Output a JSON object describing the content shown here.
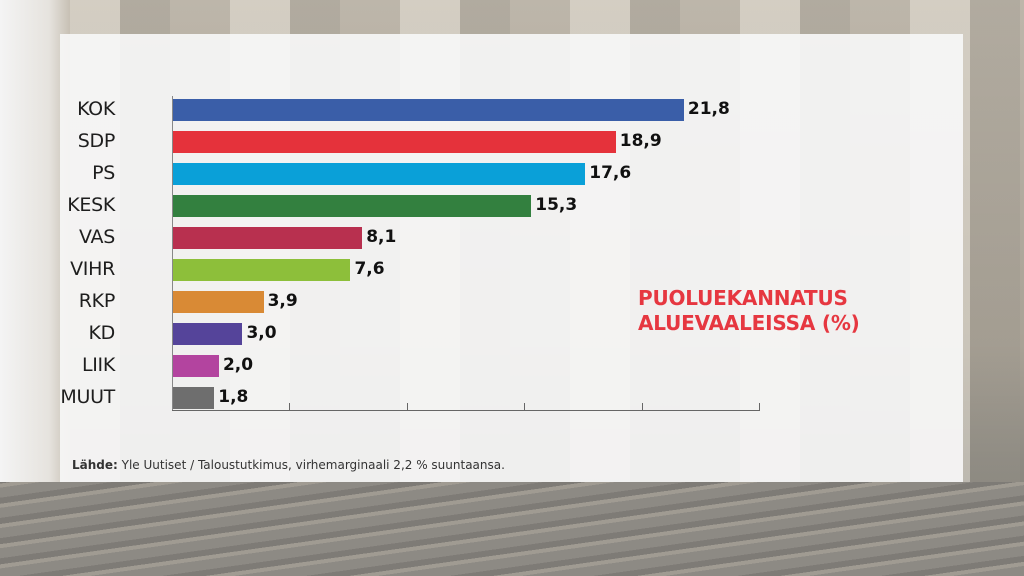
{
  "chart_data": {
    "type": "bar",
    "orientation": "horizontal",
    "title": "PUOLUEKANNATUS ALUEVAALEISSA (%)",
    "title_lines": [
      "PUOLUEKANNATUS",
      "ALUEVAALEISSA (%)"
    ],
    "categories": [
      "KOK",
      "SDP",
      "PS",
      "KESK",
      "VAS",
      "VIHR",
      "RKP",
      "KD",
      "LIIK",
      "MUUT"
    ],
    "values": [
      21.8,
      18.9,
      17.6,
      15.3,
      8.1,
      7.6,
      3.9,
      3.0,
      2.0,
      1.8
    ],
    "value_labels": [
      "21,8",
      "18,9",
      "17,6",
      "15,3",
      "8,1",
      "7,6",
      "3,9",
      "3,0",
      "2,0",
      "1,8"
    ],
    "colors": [
      "#3a5ea8",
      "#e5323b",
      "#0aa0d8",
      "#33803f",
      "#b8304f",
      "#8dbf3a",
      "#d98a35",
      "#55449a",
      "#b3449f",
      "#6e6e6e"
    ],
    "xlabel": "",
    "ylabel": "",
    "xlim": [
      0,
      25
    ],
    "x_ticks": [
      0,
      5,
      10,
      15,
      20,
      25
    ],
    "x_tick_labels_shown": false,
    "grid": false,
    "legend": "none",
    "title_color": "#e63740"
  },
  "source": {
    "label": "Lähde:",
    "text": " Yle Uutiset / Taloustutkimus, virhemarginaali 2,2 % suuntaansa."
  }
}
